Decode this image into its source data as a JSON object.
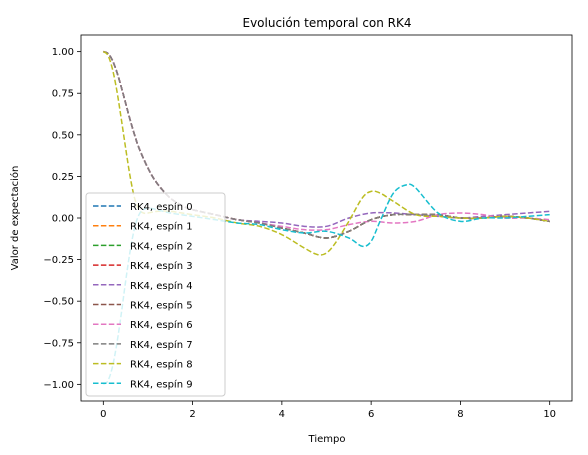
{
  "chart_data": {
    "type": "line",
    "title": "Evolución temporal con RK4",
    "xlabel": "Tiempo",
    "ylabel": "Valor de expectación",
    "xlim": [
      -0.5,
      10.5
    ],
    "ylim": [
      -1.1,
      1.1
    ],
    "xticks": [
      0,
      2,
      4,
      6,
      8,
      10
    ],
    "xtick_labels": [
      "0",
      "2",
      "4",
      "6",
      "8",
      "10"
    ],
    "yticks": [
      -1.0,
      -0.75,
      -0.5,
      -0.25,
      0.0,
      0.25,
      0.5,
      0.75,
      1.0
    ],
    "ytick_labels": [
      "−1.00",
      "−0.75",
      "−0.50",
      "−0.25",
      "0.00",
      "0.25",
      "0.50",
      "0.75",
      "1.00"
    ],
    "grid": false,
    "line_style": "dashed",
    "legend": "lower-left",
    "series": [
      {
        "name": "RK4, espín 0",
        "color": "#1f77b4",
        "x": [
          0,
          0.1,
          0.2,
          0.3,
          0.4,
          0.5,
          0.6,
          0.7,
          0.8,
          1.0,
          1.2,
          1.5,
          1.8,
          2.0,
          2.5,
          3.0,
          3.5,
          4.0,
          4.5,
          5.0,
          5.5,
          6.0,
          6.5,
          7.0,
          7.5,
          8.0,
          8.5,
          9.0,
          9.5,
          10.0
        ],
        "values": [
          1.0,
          0.99,
          0.95,
          0.88,
          0.79,
          0.69,
          0.59,
          0.5,
          0.42,
          0.3,
          0.21,
          0.12,
          0.07,
          0.05,
          0.02,
          -0.01,
          -0.03,
          -0.06,
          -0.09,
          -0.12,
          -0.08,
          -0.01,
          0.02,
          0.02,
          0.02,
          0.0,
          0.0,
          0.01,
          0.0,
          -0.02
        ]
      },
      {
        "name": "RK4, espín 1",
        "color": "#ff7f0e",
        "x": [
          0,
          0.1,
          0.2,
          0.3,
          0.4,
          0.5,
          0.6,
          0.7,
          0.8,
          1.0,
          1.2,
          1.5,
          1.8,
          2.0,
          2.5,
          3.0,
          3.5,
          4.0,
          4.5,
          5.0,
          5.5,
          6.0,
          6.5,
          7.0,
          7.5,
          8.0,
          8.5,
          9.0,
          9.5,
          10.0
        ],
        "values": [
          1.0,
          0.99,
          0.95,
          0.88,
          0.79,
          0.69,
          0.59,
          0.5,
          0.42,
          0.3,
          0.21,
          0.12,
          0.07,
          0.05,
          0.02,
          -0.01,
          -0.03,
          -0.06,
          -0.09,
          -0.12,
          -0.08,
          -0.01,
          0.02,
          0.02,
          0.02,
          0.0,
          0.0,
          0.01,
          0.0,
          -0.02
        ]
      },
      {
        "name": "RK4, espín 2",
        "color": "#2ca02c",
        "x": [
          0,
          0.1,
          0.2,
          0.3,
          0.4,
          0.5,
          0.6,
          0.7,
          0.8,
          1.0,
          1.2,
          1.5,
          1.8,
          2.0,
          2.5,
          3.0,
          3.5,
          4.0,
          4.5,
          5.0,
          5.5,
          6.0,
          6.5,
          7.0,
          7.5,
          8.0,
          8.5,
          9.0,
          9.5,
          10.0
        ],
        "values": [
          1.0,
          0.99,
          0.95,
          0.88,
          0.79,
          0.69,
          0.59,
          0.5,
          0.42,
          0.3,
          0.21,
          0.12,
          0.07,
          0.05,
          0.02,
          -0.01,
          -0.03,
          -0.06,
          -0.09,
          -0.12,
          -0.08,
          -0.01,
          0.02,
          0.02,
          0.02,
          0.0,
          0.0,
          0.01,
          0.0,
          -0.02
        ]
      },
      {
        "name": "RK4, espín 3",
        "color": "#d62728",
        "x": [
          0,
          0.1,
          0.2,
          0.3,
          0.4,
          0.5,
          0.6,
          0.7,
          0.8,
          1.0,
          1.2,
          1.5,
          1.8,
          2.0,
          2.5,
          3.0,
          3.5,
          4.0,
          4.5,
          5.0,
          5.5,
          6.0,
          6.5,
          7.0,
          7.5,
          8.0,
          8.5,
          9.0,
          9.5,
          10.0
        ],
        "values": [
          1.0,
          0.99,
          0.95,
          0.88,
          0.79,
          0.69,
          0.59,
          0.5,
          0.42,
          0.3,
          0.21,
          0.12,
          0.07,
          0.05,
          0.02,
          -0.01,
          -0.03,
          -0.06,
          -0.09,
          -0.12,
          -0.08,
          -0.01,
          0.02,
          0.02,
          0.02,
          0.0,
          0.0,
          0.01,
          0.0,
          -0.02
        ]
      },
      {
        "name": "RK4, espín 4",
        "color": "#9467bd",
        "x": [
          0,
          0.1,
          0.2,
          0.3,
          0.4,
          0.5,
          0.6,
          0.7,
          0.8,
          1.0,
          1.2,
          1.5,
          1.8,
          2.0,
          2.5,
          3.0,
          3.5,
          4.0,
          4.5,
          5.0,
          5.5,
          6.0,
          6.5,
          7.0,
          7.5,
          8.0,
          8.5,
          9.0,
          9.5,
          10.0
        ],
        "values": [
          1.0,
          0.99,
          0.95,
          0.88,
          0.79,
          0.69,
          0.59,
          0.5,
          0.42,
          0.3,
          0.21,
          0.12,
          0.07,
          0.05,
          0.02,
          -0.01,
          -0.02,
          -0.03,
          -0.05,
          -0.05,
          0.0,
          0.03,
          0.03,
          0.02,
          0.01,
          0.0,
          0.01,
          0.02,
          0.03,
          0.04
        ]
      },
      {
        "name": "RK4, espín 5",
        "color": "#8c564b",
        "x": [
          0,
          0.1,
          0.2,
          0.3,
          0.4,
          0.5,
          0.6,
          0.7,
          0.8,
          1.0,
          1.2,
          1.5,
          1.8,
          2.0,
          2.5,
          3.0,
          3.5,
          4.0,
          4.5,
          5.0,
          5.5,
          6.0,
          6.5,
          7.0,
          7.5,
          8.0,
          8.5,
          9.0,
          9.5,
          10.0
        ],
        "values": [
          1.0,
          0.99,
          0.95,
          0.88,
          0.79,
          0.69,
          0.59,
          0.5,
          0.42,
          0.3,
          0.21,
          0.12,
          0.07,
          0.05,
          0.02,
          -0.01,
          -0.03,
          -0.06,
          -0.09,
          -0.12,
          -0.08,
          -0.01,
          0.02,
          0.02,
          0.02,
          0.0,
          0.0,
          0.01,
          0.0,
          -0.02
        ]
      },
      {
        "name": "RK4, espín 6",
        "color": "#e377c2",
        "x": [
          0,
          0.1,
          0.2,
          0.3,
          0.4,
          0.5,
          0.6,
          0.7,
          0.8,
          1.0,
          1.2,
          1.5,
          1.8,
          2.0,
          2.5,
          3.0,
          3.5,
          4.0,
          4.5,
          5.0,
          5.5,
          6.0,
          6.5,
          7.0,
          7.5,
          8.0,
          8.5,
          9.0,
          9.5,
          10.0
        ],
        "values": [
          1.0,
          0.99,
          0.95,
          0.88,
          0.79,
          0.69,
          0.59,
          0.5,
          0.42,
          0.3,
          0.21,
          0.12,
          0.07,
          0.05,
          0.02,
          -0.01,
          -0.03,
          -0.05,
          -0.07,
          -0.07,
          -0.04,
          -0.02,
          -0.03,
          -0.02,
          0.02,
          0.03,
          0.02,
          0.0,
          0.0,
          -0.01
        ]
      },
      {
        "name": "RK4, espín 7",
        "color": "#7f7f7f",
        "x": [
          0,
          0.1,
          0.2,
          0.3,
          0.4,
          0.5,
          0.6,
          0.7,
          0.8,
          1.0,
          1.2,
          1.5,
          1.8,
          2.0,
          2.5,
          3.0,
          3.5,
          4.0,
          4.5,
          5.0,
          5.5,
          6.0,
          6.5,
          7.0,
          7.5,
          8.0,
          8.5,
          9.0,
          9.5,
          10.0
        ],
        "values": [
          1.0,
          0.99,
          0.95,
          0.88,
          0.79,
          0.69,
          0.59,
          0.5,
          0.42,
          0.3,
          0.21,
          0.12,
          0.07,
          0.05,
          0.02,
          -0.01,
          -0.03,
          -0.06,
          -0.09,
          -0.12,
          -0.08,
          -0.01,
          0.02,
          0.02,
          0.02,
          0.0,
          0.0,
          0.01,
          0.0,
          -0.02
        ]
      },
      {
        "name": "RK4, espín 8",
        "color": "#bcbd22",
        "x": [
          0,
          0.1,
          0.2,
          0.3,
          0.4,
          0.5,
          0.6,
          0.7,
          0.8,
          0.9,
          1.0,
          1.2,
          1.5,
          2.0,
          2.5,
          3.0,
          3.5,
          4.0,
          4.5,
          4.8,
          5.0,
          5.2,
          5.5,
          5.8,
          6.0,
          6.2,
          6.5,
          7.0,
          7.5,
          8.0,
          8.5,
          9.0,
          9.5,
          10.0
        ],
        "values": [
          1.0,
          0.98,
          0.9,
          0.77,
          0.6,
          0.42,
          0.25,
          0.12,
          0.05,
          0.03,
          0.03,
          0.04,
          0.04,
          0.02,
          0.0,
          -0.03,
          -0.05,
          -0.1,
          -0.18,
          -0.22,
          -0.21,
          -0.15,
          -0.02,
          0.12,
          0.16,
          0.15,
          0.1,
          0.02,
          0.01,
          0.0,
          0.0,
          0.01,
          0.0,
          -0.02
        ]
      },
      {
        "name": "RK4, espín 9",
        "color": "#17becf",
        "x": [
          0,
          0.1,
          0.2,
          0.3,
          0.4,
          0.5,
          0.6,
          0.7,
          0.8,
          0.9,
          1.0,
          1.2,
          1.5,
          2.0,
          2.5,
          3.0,
          3.5,
          4.0,
          4.5,
          5.0,
          5.5,
          5.8,
          6.0,
          6.2,
          6.5,
          6.8,
          7.0,
          7.5,
          8.0,
          8.5,
          9.0,
          9.5,
          10.0
        ],
        "values": [
          -1.0,
          -0.98,
          -0.9,
          -0.76,
          -0.58,
          -0.38,
          -0.2,
          -0.06,
          0.02,
          0.05,
          0.06,
          0.05,
          0.03,
          0.01,
          -0.01,
          -0.03,
          -0.04,
          -0.07,
          -0.09,
          -0.08,
          -0.12,
          -0.17,
          -0.14,
          -0.02,
          0.15,
          0.2,
          0.18,
          0.03,
          -0.02,
          0.0,
          0.0,
          0.01,
          0.02
        ]
      }
    ]
  }
}
